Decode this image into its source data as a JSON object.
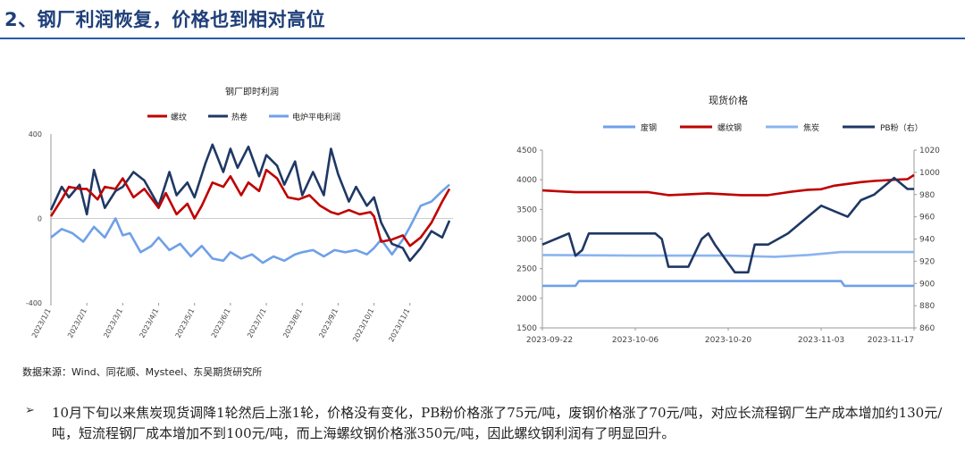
{
  "header": {
    "title": "2、钢厂利润恢复，价格也到相对高位"
  },
  "source_note": "数据来源：Wind、同花顺、Mysteel、东吴期货研究所",
  "bullet_symbol": "➢",
  "commentary": "10月下旬以来焦炭现货调降1轮然后上涨1轮，价格没有变化，PB粉价格涨了75元/吨，废钢价格涨了70元/吨，对应长流程钢厂生产成本增加约130元/吨，短流程钢厂成本增加不到100元/吨，而上海螺纹钢价格涨350元/吨，因此螺纹钢利润有了明显回升。",
  "colors": {
    "red": "#c00000",
    "navy": "#1f3864",
    "light_blue": "#6fa0e8",
    "accent": "#2a5aa8"
  },
  "chart_data": [
    {
      "type": "line",
      "title": "钢厂即时利润",
      "ylim": [
        -400,
        400
      ],
      "y_ticks": [
        "400",
        "0",
        "-400"
      ],
      "x_ticks": [
        "2023/1/1",
        "2023/2/1",
        "2023/3/1",
        "2023/4/1",
        "2023/5/1",
        "2023/6/1",
        "2023/7/1",
        "2023/8/1",
        "2023/9/1",
        "2023/10/1",
        "2023/11/1"
      ],
      "x_ticks_month": [
        0,
        1,
        2,
        3,
        4,
        5,
        6,
        7,
        8,
        9,
        10
      ],
      "xlim": [
        0,
        11.2
      ],
      "legend": "top-center",
      "series": [
        {
          "name": "螺纹",
          "color": "#c00000",
          "x": [
            0,
            0.3,
            0.5,
            0.8,
            1.0,
            1.3,
            1.5,
            1.8,
            2.0,
            2.3,
            2.6,
            3.0,
            3.2,
            3.5,
            3.8,
            4.0,
            4.2,
            4.5,
            4.8,
            5.0,
            5.3,
            5.5,
            5.8,
            6.0,
            6.3,
            6.6,
            6.9,
            7.2,
            7.5,
            7.8,
            8.0,
            8.3,
            8.6,
            8.9,
            9.0,
            9.2,
            9.5,
            9.8,
            10.0,
            10.3,
            10.6,
            10.9,
            11.1
          ],
          "values": [
            10,
            90,
            150,
            140,
            140,
            90,
            150,
            140,
            190,
            100,
            140,
            50,
            120,
            20,
            70,
            0,
            60,
            170,
            150,
            200,
            110,
            170,
            130,
            230,
            190,
            100,
            90,
            110,
            60,
            30,
            20,
            40,
            20,
            30,
            10,
            -110,
            -100,
            -80,
            -130,
            -90,
            -20,
            80,
            140
          ]
        },
        {
          "name": "热卷",
          "color": "#1f3864",
          "x": [
            0,
            0.3,
            0.5,
            0.8,
            1.0,
            1.2,
            1.5,
            1.8,
            2.0,
            2.3,
            2.6,
            3.0,
            3.3,
            3.5,
            3.8,
            4.0,
            4.3,
            4.5,
            4.8,
            5.0,
            5.2,
            5.5,
            5.8,
            6.0,
            6.3,
            6.5,
            6.8,
            7.0,
            7.3,
            7.6,
            7.8,
            8.0,
            8.3,
            8.5,
            8.8,
            9.0,
            9.2,
            9.5,
            9.8,
            10.0,
            10.3,
            10.6,
            10.9,
            11.1
          ],
          "values": [
            40,
            150,
            100,
            160,
            20,
            230,
            50,
            130,
            150,
            220,
            180,
            60,
            220,
            110,
            170,
            100,
            260,
            350,
            220,
            330,
            240,
            340,
            200,
            300,
            250,
            160,
            270,
            110,
            220,
            110,
            330,
            210,
            80,
            150,
            60,
            100,
            -20,
            -120,
            -140,
            -200,
            -140,
            -60,
            -90,
            -10
          ]
        },
        {
          "name": "电炉平电利润",
          "color": "#6fa0e8",
          "x": [
            0,
            0.3,
            0.6,
            0.9,
            1.2,
            1.5,
            1.8,
            2.0,
            2.2,
            2.5,
            2.8,
            3.0,
            3.3,
            3.6,
            3.9,
            4.2,
            4.5,
            4.8,
            5.0,
            5.3,
            5.6,
            5.9,
            6.2,
            6.5,
            6.8,
            7.0,
            7.3,
            7.6,
            7.9,
            8.2,
            8.5,
            8.8,
            9.0,
            9.2,
            9.5,
            9.8,
            10.0,
            10.3,
            10.6,
            10.9,
            11.1
          ],
          "values": [
            -90,
            -50,
            -70,
            -110,
            -40,
            -90,
            0,
            -80,
            -70,
            -160,
            -130,
            -90,
            -150,
            -120,
            -180,
            -130,
            -190,
            -200,
            -160,
            -190,
            -170,
            -210,
            -180,
            -200,
            -170,
            -160,
            -150,
            -180,
            -150,
            -160,
            -150,
            -170,
            -140,
            -100,
            -170,
            -100,
            -40,
            60,
            80,
            130,
            160
          ]
        }
      ]
    },
    {
      "type": "line",
      "title": "现货价格",
      "ylim": [
        1500,
        4500
      ],
      "y2lim": [
        860,
        1020
      ],
      "y_ticks": [
        "1500",
        "2000",
        "2500",
        "3000",
        "3500",
        "4000",
        "4500"
      ],
      "y2_ticks": [
        "860",
        "880",
        "900",
        "920",
        "940",
        "960",
        "980",
        "1000",
        "1020"
      ],
      "x_ticks": [
        "2023-09-22",
        "2023-10-06",
        "2023-10-20",
        "2023-11-03",
        "2023-11-17"
      ],
      "x_ticks_day": [
        0,
        14,
        28,
        42,
        56
      ],
      "xlim": [
        0,
        56
      ],
      "legend": "top-center",
      "series": [
        {
          "name": "废钢",
          "color": "#6fa0e8",
          "axis": "left",
          "x": [
            0,
            5,
            5.5,
            45,
            45.5,
            56
          ],
          "values": [
            2210,
            2210,
            2290,
            2290,
            2210,
            2210
          ]
        },
        {
          "name": "螺纹钢",
          "color": "#c00000",
          "axis": "left",
          "x": [
            0,
            5,
            10,
            16,
            19,
            21,
            25,
            30,
            34,
            37,
            40,
            42,
            44,
            48,
            50,
            53,
            55,
            56
          ],
          "values": [
            3820,
            3790,
            3790,
            3790,
            3740,
            3750,
            3770,
            3740,
            3740,
            3790,
            3830,
            3840,
            3900,
            3960,
            3980,
            4000,
            4010,
            4080
          ]
        },
        {
          "name": "焦炭",
          "color": "#8ab4f0",
          "axis": "left",
          "x": [
            0,
            14,
            28,
            35,
            40,
            45,
            56
          ],
          "values": [
            2730,
            2720,
            2720,
            2700,
            2730,
            2780,
            2780
          ]
        },
        {
          "name": "PB粉（右）",
          "color": "#1f3864",
          "axis": "right",
          "x": [
            0,
            4,
            5,
            6,
            7,
            17,
            18,
            19,
            22,
            24,
            25,
            26,
            29,
            31,
            32,
            34,
            37,
            40,
            42,
            44,
            46,
            48,
            50,
            53,
            55,
            56
          ],
          "values": [
            935,
            945,
            925,
            930,
            945,
            945,
            940,
            915,
            915,
            940,
            945,
            935,
            910,
            910,
            935,
            935,
            945,
            960,
            970,
            965,
            960,
            975,
            980,
            995,
            985,
            985
          ]
        }
      ]
    }
  ]
}
